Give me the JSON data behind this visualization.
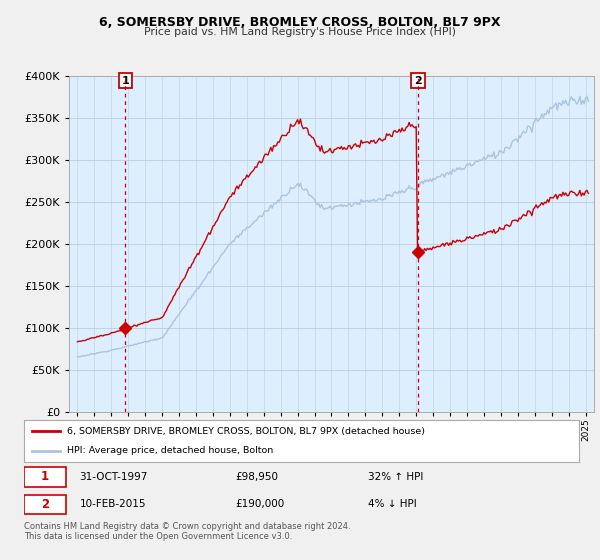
{
  "title": "6, SOMERSBY DRIVE, BROMLEY CROSS, BOLTON, BL7 9PX",
  "subtitle": "Price paid vs. HM Land Registry's House Price Index (HPI)",
  "legend_line1": "6, SOMERSBY DRIVE, BROMLEY CROSS, BOLTON, BL7 9PX (detached house)",
  "legend_line2": "HPI: Average price, detached house, Bolton",
  "annotation1_date": "31-OCT-1997",
  "annotation1_price": "£98,950",
  "annotation1_hpi": "32% ↑ HPI",
  "annotation2_date": "10-FEB-2015",
  "annotation2_price": "£190,000",
  "annotation2_hpi": "4% ↓ HPI",
  "footer": "Contains HM Land Registry data © Crown copyright and database right 2024.\nThis data is licensed under the Open Government Licence v3.0.",
  "sale1_year": 1997.83,
  "sale1_price": 98950,
  "sale2_year": 2015.11,
  "sale2_price": 190000,
  "hpi_color": "#aac4e0",
  "sold_color": "#cc0000",
  "marker_color": "#cc0000",
  "vline_color": "#cc0000",
  "background_color": "#f0f0f0",
  "plot_bg_color": "#ddeeff",
  "ylim": [
    0,
    400000
  ],
  "xlim_start": 1994.5,
  "xlim_end": 2025.5
}
